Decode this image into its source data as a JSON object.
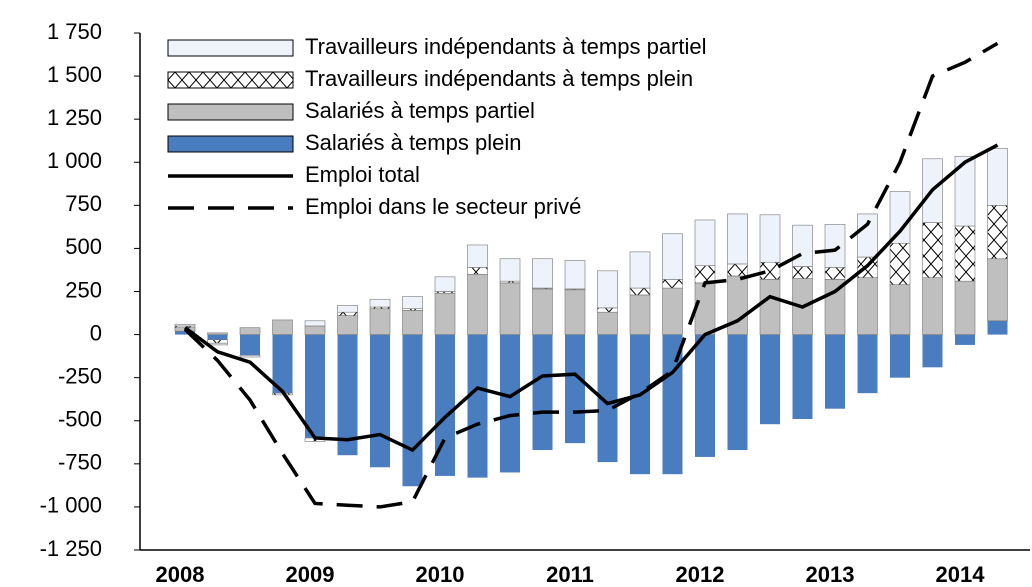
{
  "chart_data": {
    "type": "bar",
    "categories": [
      "2008",
      null,
      null,
      null,
      "2009",
      null,
      null,
      null,
      "2010",
      null,
      null,
      null,
      "2011",
      null,
      null,
      null,
      "2012",
      null,
      null,
      null,
      "2013",
      null,
      null,
      null,
      "2014",
      null
    ],
    "series": [
      {
        "name": "Salariés à temps plein",
        "style": "bar",
        "color": "#4a7cc0",
        "values": [
          20,
          -30,
          -120,
          -340,
          -600,
          -700,
          -770,
          -880,
          -820,
          -830,
          -800,
          -670,
          -630,
          -740,
          -810,
          -810,
          -710,
          -670,
          -520,
          -490,
          -430,
          -340,
          -250,
          -190,
          -60,
          80
        ]
      },
      {
        "name": "Salariés à temps partiel",
        "style": "bar",
        "color": "#bfbfbf",
        "values": [
          20,
          10,
          40,
          85,
          50,
          110,
          150,
          140,
          240,
          350,
          300,
          265,
          260,
          130,
          230,
          270,
          300,
          340,
          320,
          325,
          320,
          330,
          290,
          330,
          310,
          360
        ]
      },
      {
        "name": "Travailleurs indépendants à temps plein",
        "style": "bar",
        "color": "#ffffff",
        "pattern": "crosshatch",
        "values": [
          10,
          -20,
          0,
          -10,
          -20,
          20,
          10,
          10,
          10,
          40,
          10,
          5,
          5,
          25,
          40,
          50,
          100,
          70,
          100,
          70,
          70,
          120,
          240,
          320,
          320,
          310
        ]
      },
      {
        "name": "Travailleurs indépendants à temps partiel",
        "style": "bar",
        "color": "#eef3fb",
        "values": [
          10,
          -10,
          -10,
          0,
          30,
          40,
          45,
          70,
          85,
          130,
          130,
          170,
          165,
          215,
          210,
          265,
          265,
          290,
          275,
          240,
          250,
          250,
          300,
          370,
          405,
          330
        ]
      },
      {
        "name": "Emploi total",
        "style": "line",
        "color": "#000000",
        "values": [
          40,
          -100,
          -160,
          -330,
          -600,
          -610,
          -580,
          -670,
          -480,
          -310,
          -360,
          -240,
          -230,
          -400,
          -350,
          -220,
          0,
          80,
          220,
          160,
          250,
          400,
          600,
          840,
          1000,
          1100
        ]
      },
      {
        "name": "Emploi dans le secteur privé",
        "style": "line",
        "dash": true,
        "color": "#000000",
        "values": [
          30,
          -150,
          -380,
          -690,
          -980,
          -990,
          -1000,
          -970,
          -600,
          -520,
          -470,
          -450,
          -450,
          -440,
          -340,
          -210,
          300,
          320,
          370,
          470,
          490,
          640,
          1000,
          1500,
          1580,
          1690
        ]
      }
    ],
    "ylim": [
      -1250,
      1750
    ],
    "yticks": [
      {
        "value": -1250,
        "label": "-1 250"
      },
      {
        "value": -1000,
        "label": "-1 000"
      },
      -750,
      -500,
      -250,
      0,
      250,
      500,
      750,
      {
        "value": 1000,
        "label": "1 000"
      },
      {
        "value": 1250,
        "label": "1 250"
      },
      {
        "value": 1500,
        "label": "1 500"
      },
      {
        "value": 1750,
        "label": "1 750"
      }
    ],
    "legend": "upper left"
  }
}
